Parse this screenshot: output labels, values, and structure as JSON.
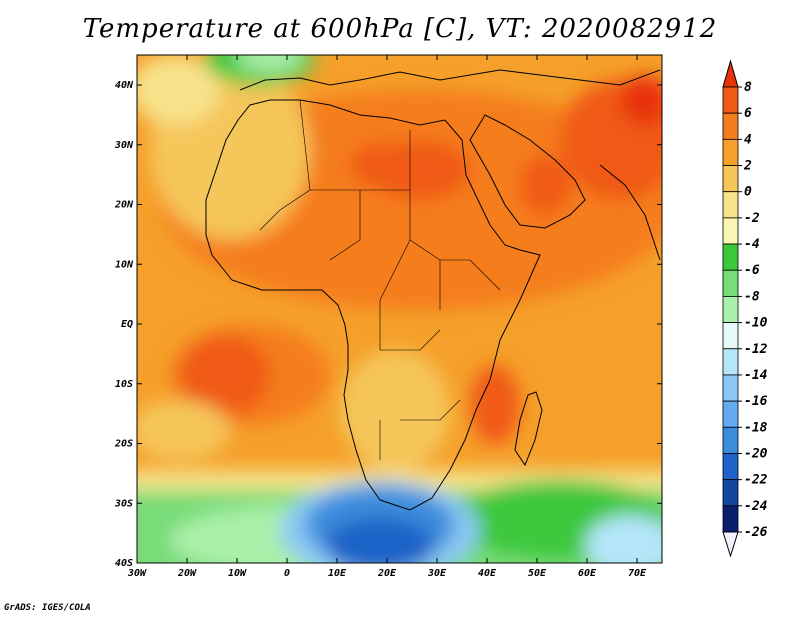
{
  "title": "Temperature at 600hPa [C], VT: 2020082912",
  "credit": "GrADS: IGES/COLA",
  "map": {
    "lat_labels": [
      "40N",
      "30N",
      "20N",
      "10N",
      "EQ",
      "10S",
      "20S",
      "30S",
      "40S"
    ],
    "lon_labels": [
      "30W",
      "20W",
      "10W",
      "0",
      "10E",
      "20E",
      "30E",
      "40E",
      "50E",
      "60E",
      "70E"
    ],
    "lat_range": [
      -40,
      45
    ],
    "lon_range": [
      -30,
      75
    ]
  },
  "colorbar": {
    "labels": [
      "8",
      "6",
      "4",
      "2",
      "0",
      "-2",
      "-4",
      "-6",
      "-8",
      "-10",
      "-12",
      "-14",
      "-16",
      "-18",
      "-20",
      "-22",
      "-24",
      "-26"
    ],
    "colors": [
      "#e8320a",
      "#f05a14",
      "#f57d1e",
      "#f5a02a",
      "#f5c65a",
      "#f8e28a",
      "#fbf5b4",
      "#3cc83c",
      "#78dc78",
      "#aaf0aa",
      "#e6fafa",
      "#b4e6fa",
      "#8cc8f5",
      "#64aaf0",
      "#3c8cdc",
      "#1e64c8",
      "#1446a0",
      "#0a1e6e",
      "#f0f0ff"
    ]
  }
}
